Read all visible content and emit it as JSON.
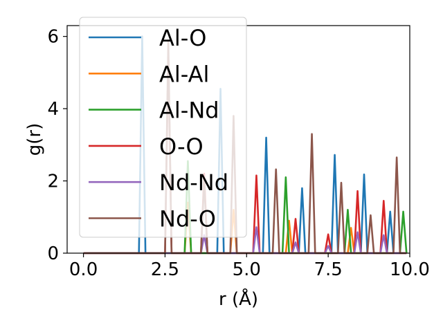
{
  "chart_data": {
    "type": "line",
    "title": "",
    "xlabel": "r (Å)",
    "ylabel": "g(r)",
    "xlim": [
      -0.5,
      10.0
    ],
    "ylim": [
      0,
      6.3
    ],
    "xticks": [
      0.0,
      2.5,
      5.0,
      7.5,
      10.0
    ],
    "xtick_labels": [
      "0.0",
      "2.5",
      "5.0",
      "7.5",
      "10.0"
    ],
    "yticks": [
      0,
      2,
      4,
      6
    ],
    "ytick_labels": [
      "0",
      "2",
      "4",
      "6"
    ],
    "grid": false,
    "legend_position": "top-left",
    "peak_halfwidth": 0.1,
    "series": [
      {
        "name": "Al-O",
        "color": "#1f77b4",
        "peaks": [
          [
            1.8,
            6.0
          ],
          [
            4.2,
            4.55
          ],
          [
            5.6,
            3.2
          ],
          [
            6.7,
            1.8
          ],
          [
            7.7,
            2.72
          ],
          [
            8.6,
            2.18
          ],
          [
            9.4,
            1.15
          ]
        ]
      },
      {
        "name": "Al-Al",
        "color": "#ff7f0e",
        "peaks": [
          [
            3.2,
            1.4
          ],
          [
            4.6,
            1.2
          ],
          [
            6.3,
            0.9
          ],
          [
            8.2,
            0.7
          ]
        ]
      },
      {
        "name": "Al-Nd",
        "color": "#2ca02c",
        "peaks": [
          [
            3.2,
            2.55
          ],
          [
            6.2,
            2.1
          ],
          [
            8.1,
            1.2
          ],
          [
            9.8,
            1.15
          ]
        ]
      },
      {
        "name": "O-O",
        "color": "#d62728",
        "peaks": [
          [
            2.6,
            5.5
          ],
          [
            3.7,
            2.2
          ],
          [
            5.3,
            2.15
          ],
          [
            6.5,
            0.95
          ],
          [
            7.5,
            0.52
          ],
          [
            8.4,
            1.72
          ],
          [
            9.2,
            1.45
          ]
        ]
      },
      {
        "name": "Nd-Nd",
        "color": "#9467bd",
        "peaks": [
          [
            3.7,
            0.5
          ],
          [
            5.3,
            0.72
          ],
          [
            6.5,
            0.3
          ],
          [
            7.5,
            0.2
          ],
          [
            8.4,
            0.58
          ],
          [
            9.2,
            0.5
          ]
        ]
      },
      {
        "name": "Nd-O",
        "color": "#8c564b",
        "peaks": [
          [
            2.6,
            5.9
          ],
          [
            3.7,
            2.0
          ],
          [
            4.6,
            3.8
          ],
          [
            5.9,
            2.32
          ],
          [
            7.0,
            3.3
          ],
          [
            7.9,
            1.95
          ],
          [
            8.8,
            1.05
          ],
          [
            9.6,
            2.65
          ]
        ]
      }
    ]
  }
}
